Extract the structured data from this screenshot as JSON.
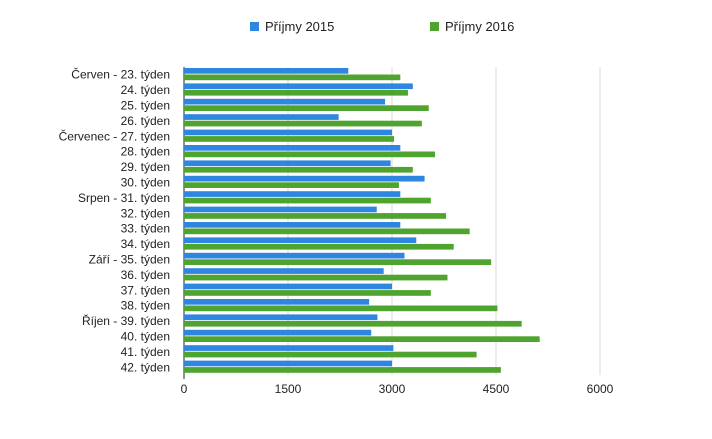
{
  "chart_data": {
    "type": "bar",
    "orientation": "horizontal",
    "categories": [
      "Červen - 23. týden",
      "24. týden",
      "25. týden",
      "26. týden",
      "Červenec - 27. týden",
      "28. týden",
      "29. týden",
      "30. týden",
      "Srpen - 31. týden",
      "32. týden",
      "33. týden",
      "34. týden",
      "Září - 35. týden",
      "36. týden",
      "37. týden",
      "38. týden",
      "Říjen - 39. týden",
      "40. týden",
      "41. týden",
      "42. týden"
    ],
    "series": [
      {
        "name": "Příjmy 2015",
        "color": "#2f86e0",
        "values": [
          2370,
          3300,
          2900,
          2230,
          3000,
          3120,
          2980,
          3470,
          3120,
          2780,
          3120,
          3350,
          3180,
          2880,
          3000,
          2670,
          2790,
          2700,
          3020,
          3000
        ]
      },
      {
        "name": "Příjmy 2016",
        "color": "#4ea42e",
        "values": [
          3120,
          3230,
          3530,
          3430,
          3030,
          3620,
          3300,
          3100,
          3560,
          3780,
          4120,
          3890,
          4430,
          3800,
          3560,
          4520,
          4870,
          5130,
          4220,
          4570
        ]
      }
    ],
    "xaxis": {
      "ticks": [
        0,
        1500,
        3000,
        4500,
        6000
      ],
      "range": [
        0,
        6000
      ]
    },
    "grid": true,
    "legend_position": "top"
  }
}
